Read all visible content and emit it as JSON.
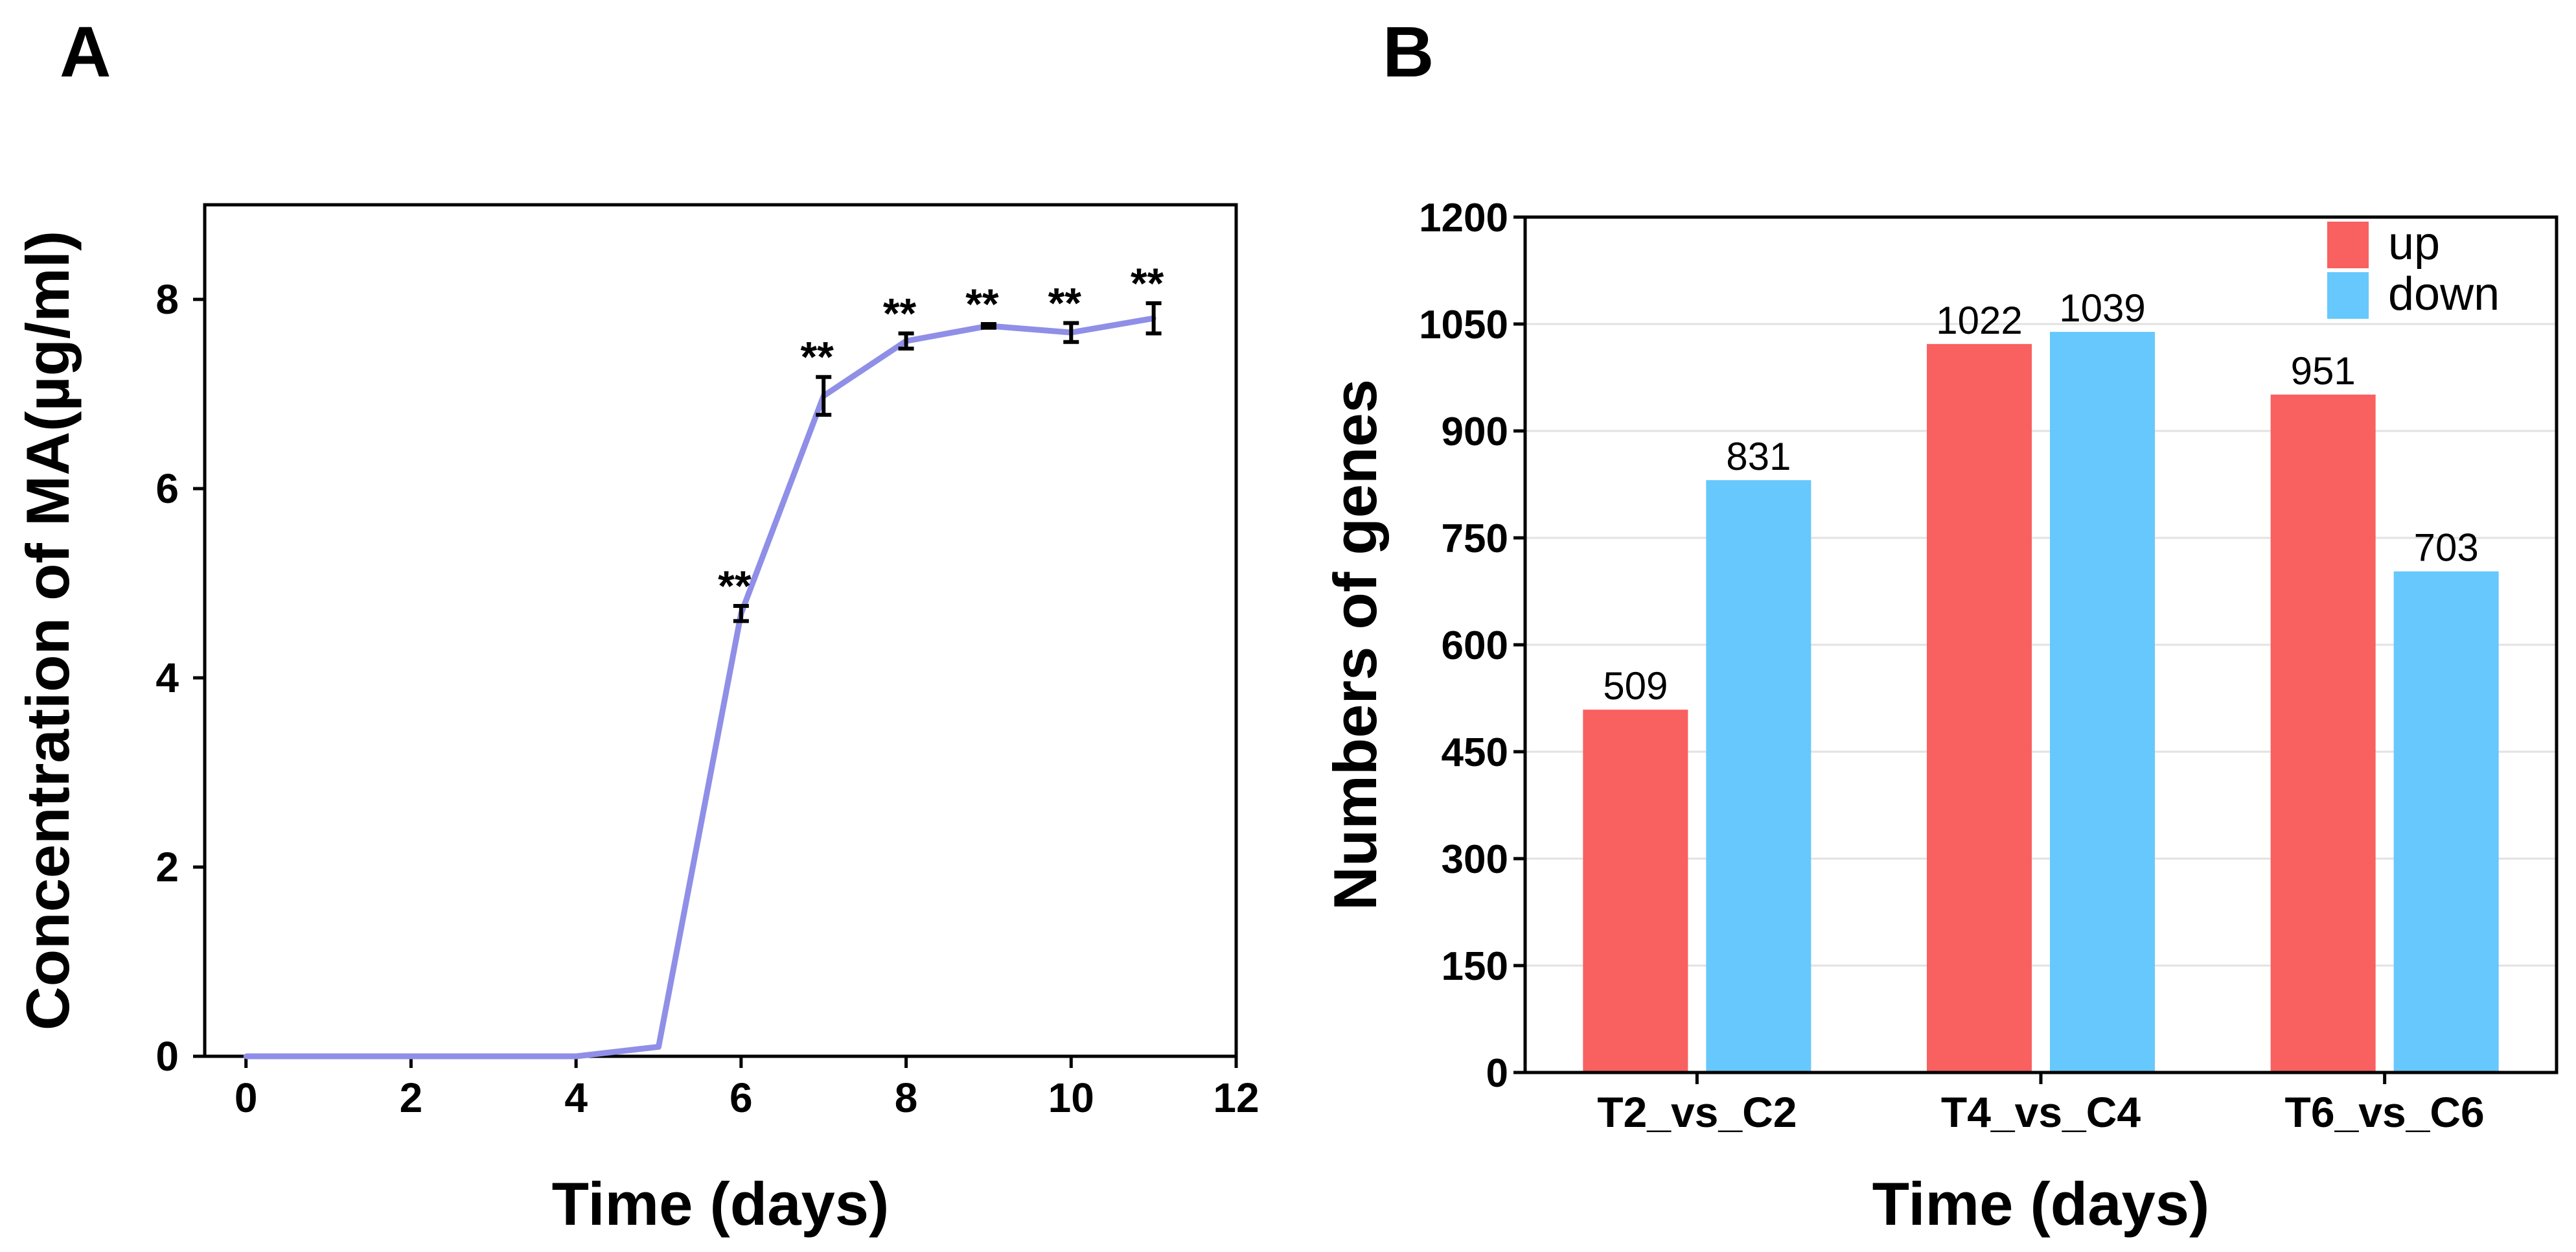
{
  "chart_data": [
    {
      "panel": "A",
      "type": "line",
      "title": "",
      "xlabel": "Time (days)",
      "ylabel": "Concentration of  MA(µg/ml)",
      "xlim": [
        -0.5,
        12
      ],
      "ylim": [
        0,
        9
      ],
      "xticks": [
        0,
        2,
        4,
        6,
        8,
        10,
        12
      ],
      "yticks": [
        0,
        2,
        4,
        6,
        8
      ],
      "grid": false,
      "series": [
        {
          "name": "MA concentration",
          "color": "#8f8fe8",
          "x": [
            0,
            1,
            2,
            3,
            4,
            5,
            6,
            7,
            8,
            9,
            10,
            11
          ],
          "y": [
            0,
            0,
            0,
            0,
            0,
            0.1,
            4.68,
            6.98,
            7.56,
            7.72,
            7.65,
            7.8
          ],
          "error": [
            0,
            0,
            0,
            0,
            0,
            0,
            0.08,
            0.2,
            0.08,
            0.02,
            0.1,
            0.16
          ],
          "significance": [
            "",
            "",
            "",
            "",
            "",
            "",
            "**",
            "**",
            "**",
            "**",
            "**",
            "**"
          ]
        }
      ]
    },
    {
      "panel": "B",
      "type": "bar",
      "title": "",
      "xlabel": "Time (days)",
      "ylabel": "Numbers of genes",
      "categories": [
        "T2_vs_C2",
        "T4_vs_C4",
        "T6_vs_C6"
      ],
      "ylim": [
        0,
        1200
      ],
      "yticks": [
        0,
        150,
        300,
        450,
        600,
        750,
        900,
        1050,
        1200
      ],
      "grid": true,
      "legend": "top-right",
      "series": [
        {
          "name": "up",
          "color": "#f96060",
          "values": [
            509,
            1022,
            951
          ]
        },
        {
          "name": "down",
          "color": "#66c8fc",
          "values": [
            831,
            1039,
            703
          ]
        }
      ]
    }
  ]
}
